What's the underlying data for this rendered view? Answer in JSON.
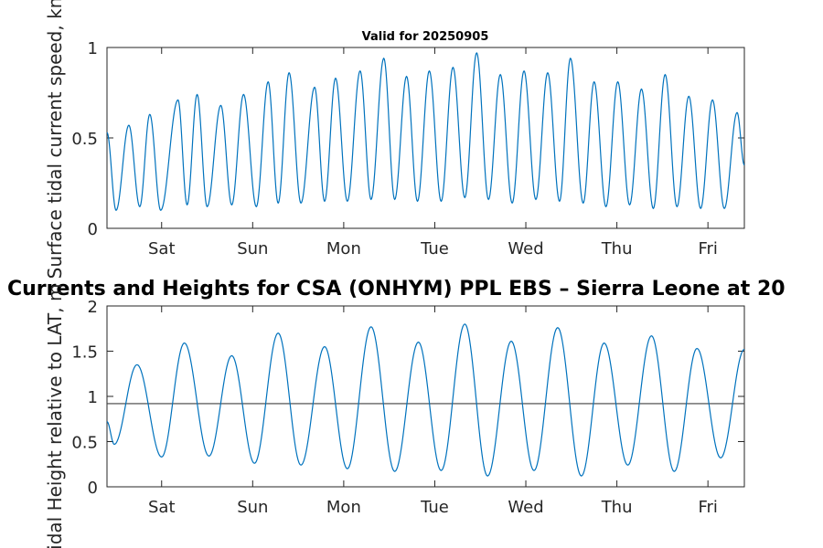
{
  "figure_title": "Currents and Heights for CSA (ONHYM) PPL EBS  – Sierra Leone at 20",
  "colors": {
    "series": "#0072BD",
    "reference_line": "#404040",
    "axes": "#262626"
  },
  "chart_data": [
    {
      "type": "line",
      "title": "Valid for 20250905",
      "xlabel": "",
      "ylabel": "Surface tidal current speed, kn",
      "xlim": [
        0,
        7
      ],
      "ylim": [
        0,
        1
      ],
      "x_ticks": [
        0.6,
        1.6,
        2.6,
        3.6,
        4.6,
        5.6,
        6.6
      ],
      "x_tick_labels": [
        "Sat",
        "Sun",
        "Mon",
        "Tue",
        "Wed",
        "Thu",
        "Fri"
      ],
      "y_ticks": [
        0,
        0.5,
        1
      ],
      "y_tick_labels": [
        "0",
        "0.5",
        "1"
      ],
      "grid": false,
      "series": [
        {
          "note_x_unit": "days",
          "extrema": [
            [
              0.0,
              0.53
            ],
            [
              0.1,
              0.1
            ],
            [
              0.24,
              0.57
            ],
            [
              0.36,
              0.12
            ],
            [
              0.47,
              0.63
            ],
            [
              0.59,
              0.1
            ],
            [
              0.78,
              0.71
            ],
            [
              0.88,
              0.13
            ],
            [
              0.99,
              0.74
            ],
            [
              1.1,
              0.12
            ],
            [
              1.25,
              0.68
            ],
            [
              1.37,
              0.13
            ],
            [
              1.5,
              0.74
            ],
            [
              1.64,
              0.12
            ],
            [
              1.77,
              0.81
            ],
            [
              1.88,
              0.14
            ],
            [
              2.0,
              0.86
            ],
            [
              2.13,
              0.14
            ],
            [
              2.28,
              0.78
            ],
            [
              2.39,
              0.15
            ],
            [
              2.51,
              0.83
            ],
            [
              2.64,
              0.15
            ],
            [
              2.78,
              0.87
            ],
            [
              2.9,
              0.16
            ],
            [
              3.04,
              0.94
            ],
            [
              3.16,
              0.16
            ],
            [
              3.29,
              0.84
            ],
            [
              3.41,
              0.15
            ],
            [
              3.54,
              0.87
            ],
            [
              3.67,
              0.15
            ],
            [
              3.8,
              0.89
            ],
            [
              3.93,
              0.17
            ],
            [
              4.06,
              0.97
            ],
            [
              4.19,
              0.16
            ],
            [
              4.32,
              0.85
            ],
            [
              4.45,
              0.14
            ],
            [
              4.58,
              0.87
            ],
            [
              4.71,
              0.16
            ],
            [
              4.84,
              0.86
            ],
            [
              4.97,
              0.15
            ],
            [
              5.09,
              0.94
            ],
            [
              5.23,
              0.14
            ],
            [
              5.35,
              0.81
            ],
            [
              5.48,
              0.12
            ],
            [
              5.61,
              0.81
            ],
            [
              5.74,
              0.13
            ],
            [
              5.87,
              0.77
            ],
            [
              6.0,
              0.11
            ],
            [
              6.13,
              0.85
            ],
            [
              6.26,
              0.12
            ],
            [
              6.39,
              0.73
            ],
            [
              6.52,
              0.11
            ],
            [
              6.65,
              0.71
            ],
            [
              6.78,
              0.11
            ],
            [
              6.92,
              0.64
            ],
            [
              7.0,
              0.35
            ]
          ]
        }
      ]
    },
    {
      "type": "line",
      "title": "",
      "xlabel": "",
      "ylabel": "Tidal Height relative to LAT, m",
      "xlim": [
        0,
        7
      ],
      "ylim": [
        0,
        2
      ],
      "x_ticks": [
        0.6,
        1.6,
        2.6,
        3.6,
        4.6,
        5.6,
        6.6
      ],
      "x_tick_labels": [
        "Sat",
        "Sun",
        "Mon",
        "Tue",
        "Wed",
        "Thu",
        "Fri"
      ],
      "y_ticks": [
        0,
        0.5,
        1,
        1.5,
        2
      ],
      "y_tick_labels": [
        "0",
        "0.5",
        "1",
        "1.5",
        "2"
      ],
      "grid": false,
      "reference_line_y": 0.92,
      "series": [
        {
          "extrema": [
            [
              0.0,
              0.72
            ],
            [
              0.08,
              0.47
            ],
            [
              0.33,
              1.35
            ],
            [
              0.6,
              0.33
            ],
            [
              0.85,
              1.59
            ],
            [
              1.12,
              0.34
            ],
            [
              1.37,
              1.45
            ],
            [
              1.62,
              0.26
            ],
            [
              1.88,
              1.7
            ],
            [
              2.13,
              0.24
            ],
            [
              2.39,
              1.55
            ],
            [
              2.64,
              0.2
            ],
            [
              2.9,
              1.77
            ],
            [
              3.16,
              0.17
            ],
            [
              3.42,
              1.6
            ],
            [
              3.67,
              0.18
            ],
            [
              3.93,
              1.8
            ],
            [
              4.18,
              0.12
            ],
            [
              4.44,
              1.61
            ],
            [
              4.69,
              0.18
            ],
            [
              4.95,
              1.76
            ],
            [
              5.21,
              0.12
            ],
            [
              5.46,
              1.59
            ],
            [
              5.72,
              0.24
            ],
            [
              5.98,
              1.67
            ],
            [
              6.23,
              0.17
            ],
            [
              6.48,
              1.53
            ],
            [
              6.74,
              0.32
            ],
            [
              7.0,
              1.52
            ]
          ]
        }
      ]
    }
  ]
}
